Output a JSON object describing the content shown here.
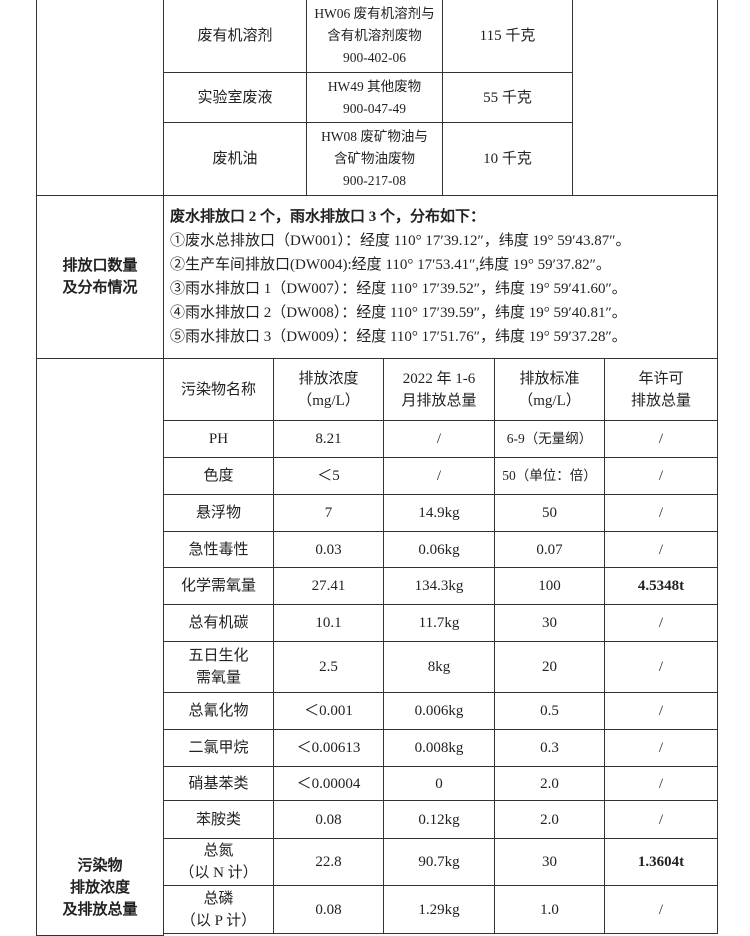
{
  "waste_table": {
    "rows": [
      {
        "name": "废有机溶剂",
        "code": "HW06 废有机溶剂与\n含有机溶剂废物\n900-402-06",
        "amount": "115 千克"
      },
      {
        "name": "实验室废液",
        "code": "HW49 其他废物\n900-047-49",
        "amount": "55 千克"
      },
      {
        "name": "废机油",
        "code": "HW08 废矿物油与\n含矿物油废物\n900-217-08",
        "amount": "10 千克"
      }
    ]
  },
  "outlets": {
    "label": "排放口数量\n及分布情况",
    "summary": "废水排放口 2 个，雨水排放口 3 个，分布如下：",
    "items": [
      "①废水总排放口（DW001）：经度 110° 17′39.12″，纬度 19° 59′43.87″。",
      "②生产车间排放口(DW004):经度 110° 17′53.41″,纬度 19° 59′37.82″。",
      "③雨水排放口 1（DW007）：经度 110° 17′39.52″，纬度 19° 59′41.60″。",
      "④雨水排放口 2（DW008）：经度 110° 17′39.59″，纬度 19° 59′40.81″。",
      "⑤雨水排放口 3（DW009）：经度 110° 17′51.76″，纬度 19° 59′37.28″。"
    ]
  },
  "pollutants": {
    "label": "污染物\n排放浓度\n及排放总量",
    "headers": [
      "污染物名称",
      "排放浓度\n（mg/L）",
      "2022 年 1-6\n月排放总量",
      "排放标准\n（mg/L）",
      "年许可\n排放总量"
    ],
    "rows": [
      [
        "PH",
        "8.21",
        "/",
        "6-9（无量纲）",
        "/"
      ],
      [
        "色度",
        "＜5",
        "/",
        "50（单位：倍）",
        "/"
      ],
      [
        "悬浮物",
        "7",
        "14.9kg",
        "50",
        "/"
      ],
      [
        "急性毒性",
        "0.03",
        "0.06kg",
        "0.07",
        "/"
      ],
      [
        "化学需氧量",
        "27.41",
        "134.3kg",
        "100",
        "4.5348t"
      ],
      [
        "总有机碳",
        "10.1",
        "11.7kg",
        "30",
        "/"
      ],
      [
        "五日生化\n需氧量",
        "2.5",
        "8kg",
        "20",
        "/"
      ],
      [
        "总氰化物",
        "＜0.001",
        "0.006kg",
        "0.5",
        "/"
      ],
      [
        "二氯甲烷",
        "＜0.00613",
        "0.008kg",
        "0.3",
        "/"
      ],
      [
        "硝基苯类",
        "＜0.00004",
        "0",
        "2.0",
        "/"
      ],
      [
        "苯胺类",
        "0.08",
        "0.12kg",
        "2.0",
        "/"
      ],
      [
        "总氮\n（以 N 计）",
        "22.8",
        "90.7kg",
        "30",
        "1.3604t"
      ],
      [
        "总磷\n（以 P 计）",
        "0.08",
        "1.29kg",
        "1.0",
        "/"
      ]
    ]
  }
}
